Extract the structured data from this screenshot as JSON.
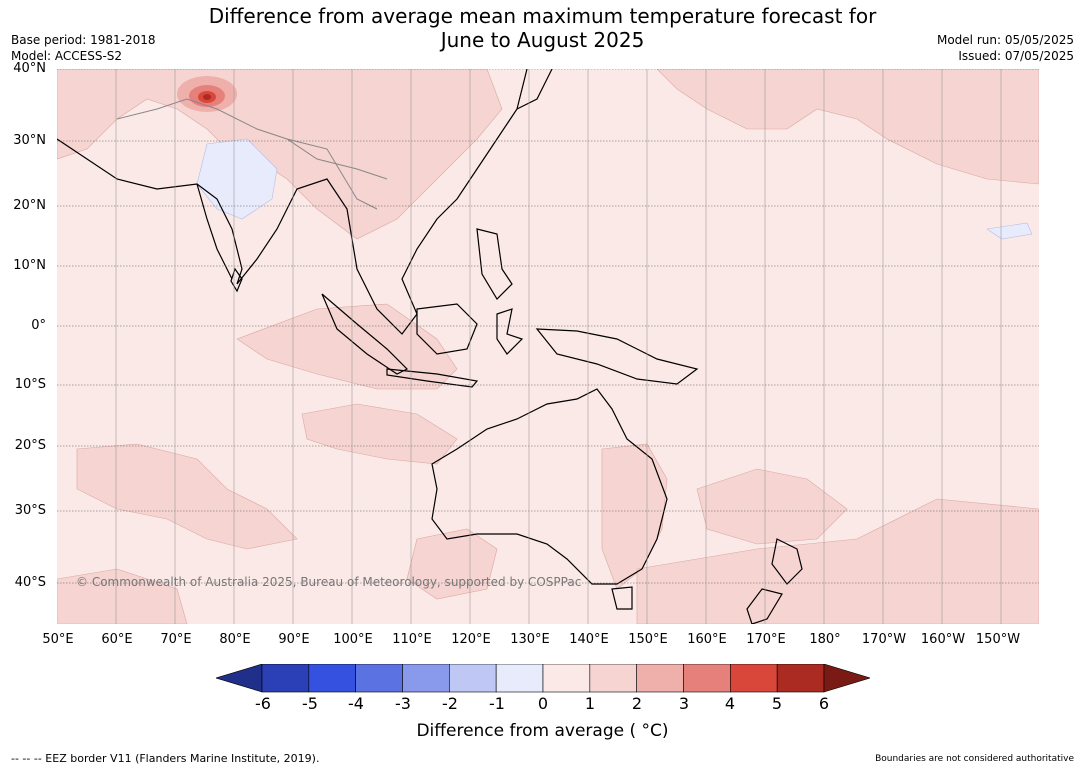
{
  "title_line1": "Difference from average mean maximum temperature forecast for",
  "title_line2": "June to August 2025",
  "base_period": "Base period: 1981-2018",
  "model": "Model: ACCESS-S2",
  "model_run": "Model run: 05/05/2025",
  "issued": "Issued: 07/05/2025",
  "copyright": "© Commonwealth of Australia 2025, Bureau of Meteorology, supported by COSPPac",
  "eez_note": "--  --  -- EEZ border V11 (Flanders Marine Institute, 2019).",
  "boundaries_note": "Boundaries are not considered authoritative",
  "lat_labels": [
    "40°N",
    "30°N",
    "20°N",
    "10°N",
    "0°",
    "10°S",
    "20°S",
    "30°S",
    "40°S"
  ],
  "lon_labels": [
    "50°E",
    "60°E",
    "70°E",
    "80°E",
    "90°E",
    "100°E",
    "110°E",
    "120°E",
    "130°E",
    "140°E",
    "150°E",
    "160°E",
    "170°E",
    "180°",
    "170°W",
    "160°W",
    "150°W"
  ],
  "colorbar": {
    "label": "Difference from average ( °C)",
    "ticks": [
      "-6",
      "-5",
      "-4",
      "-3",
      "-2",
      "-1",
      "0",
      "1",
      "2",
      "3",
      "4",
      "5",
      "6"
    ],
    "colors": [
      "#1f2f8a",
      "#2b3fb6",
      "#3452df",
      "#5b73e2",
      "#8999eb",
      "#bfc7f4",
      "#e8ebfb",
      "#fbe9e7",
      "#f6d4d1",
      "#efafab",
      "#e6807a",
      "#d9473b",
      "#ab2a22",
      "#7a1a14"
    ]
  },
  "colors": {
    "base_fill": "#fbe9e7",
    "warm_fill": "#f6d4d1",
    "hot_fill": "#e6807a",
    "cool_fill": "#e8ebfb"
  }
}
